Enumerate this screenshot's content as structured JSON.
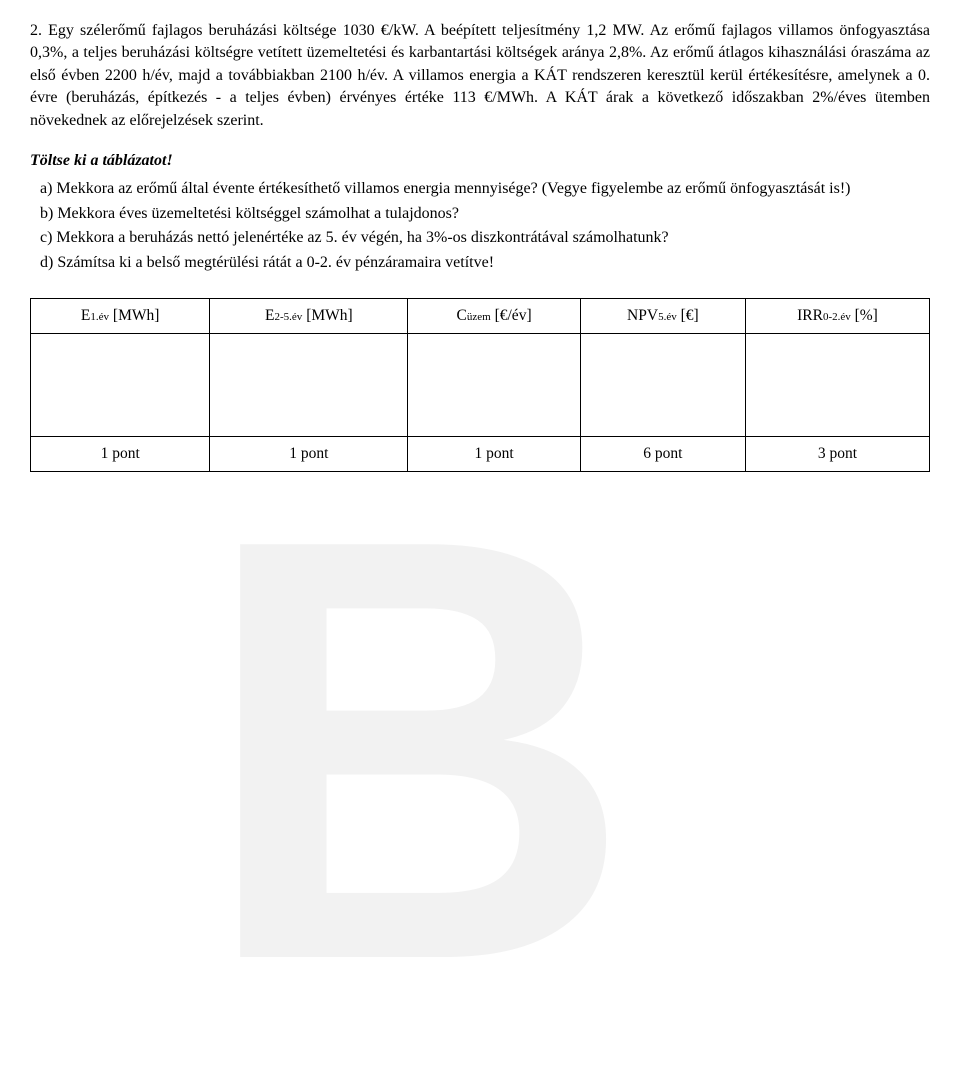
{
  "problem": {
    "number": "2.",
    "text": "Egy szélerőmű fajlagos beruházási költsége 1030 €/kW. A beépített teljesítmény 1,2 MW. Az erőmű fajlagos villamos önfogyasztása 0,3%, a teljes beruházási költségre vetített üzemeltetési és karbantartási költségek aránya 2,8%. Az erőmű átlagos kihasználási óraszáma az első évben 2200 h/év, majd a továbbiakban 2100 h/év. A villamos energia a KÁT rendszeren keresztül kerül értékesítésre, amelynek a 0. évre (beruházás, építkezés - a teljes évben) érvényes értéke 113 €/MWh. A KÁT árak a következő időszakban 2%/éves ütemben növekednek az előrejelzések szerint."
  },
  "instruction": "Töltse ki a táblázatot!",
  "subquestions": {
    "a": "a) Mekkora az erőmű által évente értékesíthető villamos energia mennyisége? (Vegye figyelembe az erőmű önfogyasztását is!)",
    "b": "b) Mekkora éves üzemeltetési költséggel számolhat a tulajdonos?",
    "c": "c) Mekkora a beruházás nettó jelenértéke az 5. év végén, ha 3%-os diszkontrátával számolhatunk?",
    "d": "d) Számítsa ki a belső megtérülési rátát a 0-2. év pénzáramaira vetítve!"
  },
  "table": {
    "headers": [
      {
        "main": "E",
        "sub": "1.év",
        "unit": " [MWh]"
      },
      {
        "main": "E",
        "sub": "2-5.év",
        "unit": " [MWh]"
      },
      {
        "main": "C",
        "sub": "üzem",
        "unit": " [€/év]"
      },
      {
        "main": "NPV",
        "sub": "5.év",
        "unit": " [€]"
      },
      {
        "main": "IRR",
        "sub": "0-2.év",
        "unit": " [%]"
      }
    ],
    "points": [
      "1 pont",
      "1 pont",
      "1 pont",
      "6 pont",
      "3 pont"
    ]
  },
  "watermark": "B"
}
